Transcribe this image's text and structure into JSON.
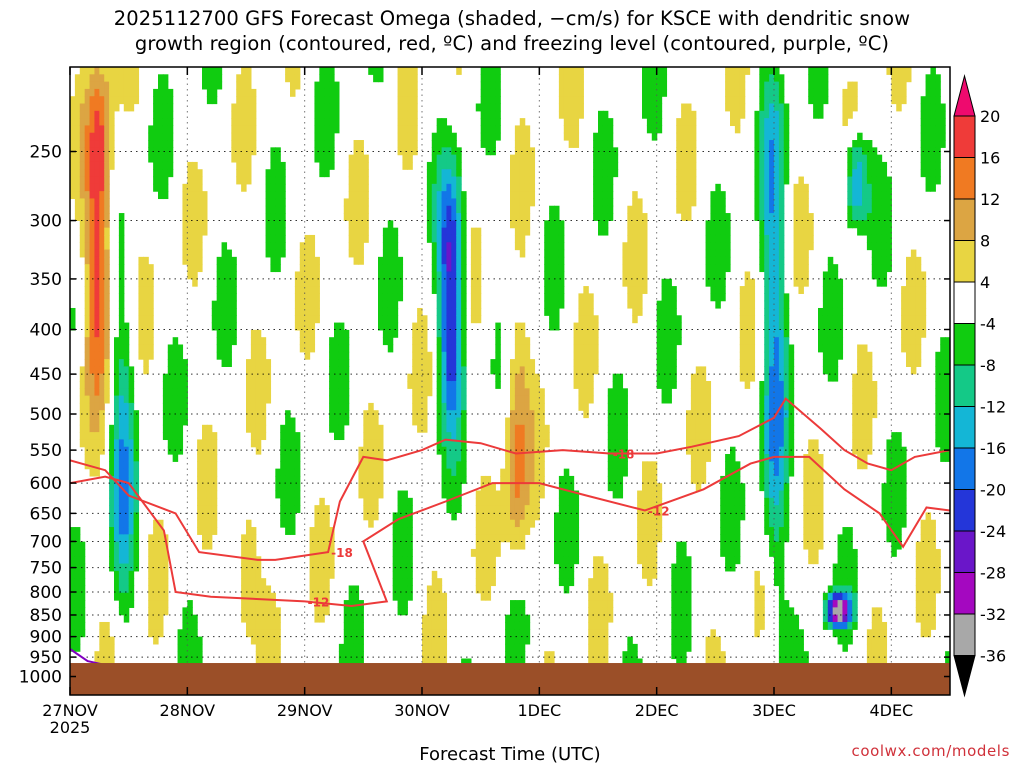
{
  "title_line1": "2025112700 GFS Forecast Omega (shaded, −cm/s) for KSCE with dendritic snow",
  "title_line2": "growth region (contoured, red, ºC) and freezing level (contoured, purple, ºC)",
  "credit": "coolwx.com/models",
  "chart_data": {
    "type": "heatmap",
    "title": "2025112700 GFS Forecast Omega (shaded, −cm/s) for KSCE with dendritic snow growth region (contoured, red, ºC) and freezing level (contoured, purple, ºC)",
    "xlabel": "Forecast Time (UTC)",
    "ylabel": "",
    "x_ticks": [
      "27NOV\n2025",
      "28NOV",
      "29NOV",
      "30NOV",
      "1DEC",
      "2DEC",
      "3DEC",
      "4DEC"
    ],
    "x_range_days": [
      0,
      7.5
    ],
    "y_ticks": [
      250,
      300,
      350,
      400,
      450,
      500,
      550,
      600,
      650,
      700,
      750,
      800,
      850,
      900,
      950,
      1000
    ],
    "y_range_hpa": [
      200,
      1050
    ],
    "y_scale": "log-pressure",
    "grid": true,
    "colorbar": {
      "labels": [
        "20",
        "16",
        "12",
        "8",
        "4",
        "-4",
        "-8",
        "-12",
        "-16",
        "-20",
        "-24",
        "-28",
        "-32",
        "-36"
      ],
      "colors": [
        "#ee0a6e",
        "#ef3b39",
        "#f07a22",
        "#dca543",
        "#e8d542",
        "#ffffff",
        "#10cc10",
        "#14c987",
        "#14b6d6",
        "#1276e8",
        "#2436d9",
        "#6a16c9",
        "#a408c0",
        "#a8a8a8",
        "#000000"
      ]
    },
    "omega_features": [
      {
        "day": 0.25,
        "p_top": 200,
        "p_bot": 450,
        "value": 20
      },
      {
        "day": 0.45,
        "p_top": 380,
        "p_bot": 850,
        "value": -12
      },
      {
        "day": 1.5,
        "p_top": 650,
        "p_bot": 900,
        "value": 12
      },
      {
        "day": 3.25,
        "p_top": 270,
        "p_bot": 500,
        "value": -24
      },
      {
        "day": 3.8,
        "p_top": 380,
        "p_bot": 750,
        "value": 12
      },
      {
        "day": 6.0,
        "p_top": 200,
        "p_bot": 850,
        "value": -14
      },
      {
        "day": 6.7,
        "p_top": 240,
        "p_bot": 300,
        "value": -18
      },
      {
        "day": 6.55,
        "p_top": 820,
        "p_bot": 860,
        "value": -30
      }
    ],
    "contours": [
      {
        "label": "-18",
        "color": "#ec3a3a",
        "points": [
          [
            0,
            565
          ],
          [
            0.3,
            580
          ],
          [
            0.5,
            620
          ],
          [
            0.9,
            650
          ],
          [
            1.1,
            720
          ],
          [
            1.6,
            735
          ],
          [
            1.75,
            735
          ],
          [
            2.2,
            720
          ],
          [
            2.3,
            630
          ],
          [
            2.5,
            560
          ],
          [
            2.7,
            565
          ],
          [
            3.0,
            550
          ],
          [
            3.2,
            535
          ],
          [
            3.5,
            540
          ],
          [
            3.8,
            555
          ],
          [
            4.2,
            550
          ],
          [
            4.6,
            555
          ],
          [
            5.0,
            555
          ],
          [
            5.3,
            545
          ],
          [
            5.7,
            530
          ],
          [
            6.0,
            505
          ],
          [
            6.1,
            480
          ],
          [
            6.4,
            520
          ],
          [
            6.6,
            550
          ],
          [
            6.8,
            570
          ],
          [
            7.0,
            580
          ],
          [
            7.2,
            560
          ],
          [
            7.5,
            550
          ]
        ]
      },
      {
        "label": "-12",
        "color": "#ec3a3a",
        "points": [
          [
            0,
            600
          ],
          [
            0.3,
            590
          ],
          [
            0.5,
            600
          ],
          [
            0.8,
            680
          ],
          [
            0.9,
            800
          ],
          [
            1.2,
            810
          ],
          [
            2.0,
            820
          ],
          [
            2.4,
            830
          ],
          [
            2.7,
            820
          ],
          [
            2.5,
            700
          ],
          [
            2.8,
            660
          ],
          [
            3.2,
            630
          ],
          [
            3.6,
            600
          ],
          [
            4.0,
            600
          ],
          [
            4.4,
            620
          ],
          [
            4.9,
            645
          ],
          [
            5.4,
            610
          ],
          [
            5.8,
            570
          ],
          [
            6.0,
            560
          ],
          [
            6.3,
            560
          ],
          [
            6.6,
            610
          ],
          [
            6.9,
            650
          ],
          [
            7.1,
            710
          ],
          [
            7.3,
            640
          ],
          [
            7.5,
            645
          ]
        ]
      },
      {
        "label": "0",
        "color": "#8000c0",
        "points": [
          [
            0,
            930
          ],
          [
            0.15,
            960
          ],
          [
            0.3,
            970
          ]
        ]
      }
    ],
    "ground": {
      "color": "#9b4f28",
      "p_top_hpa": 965
    }
  }
}
